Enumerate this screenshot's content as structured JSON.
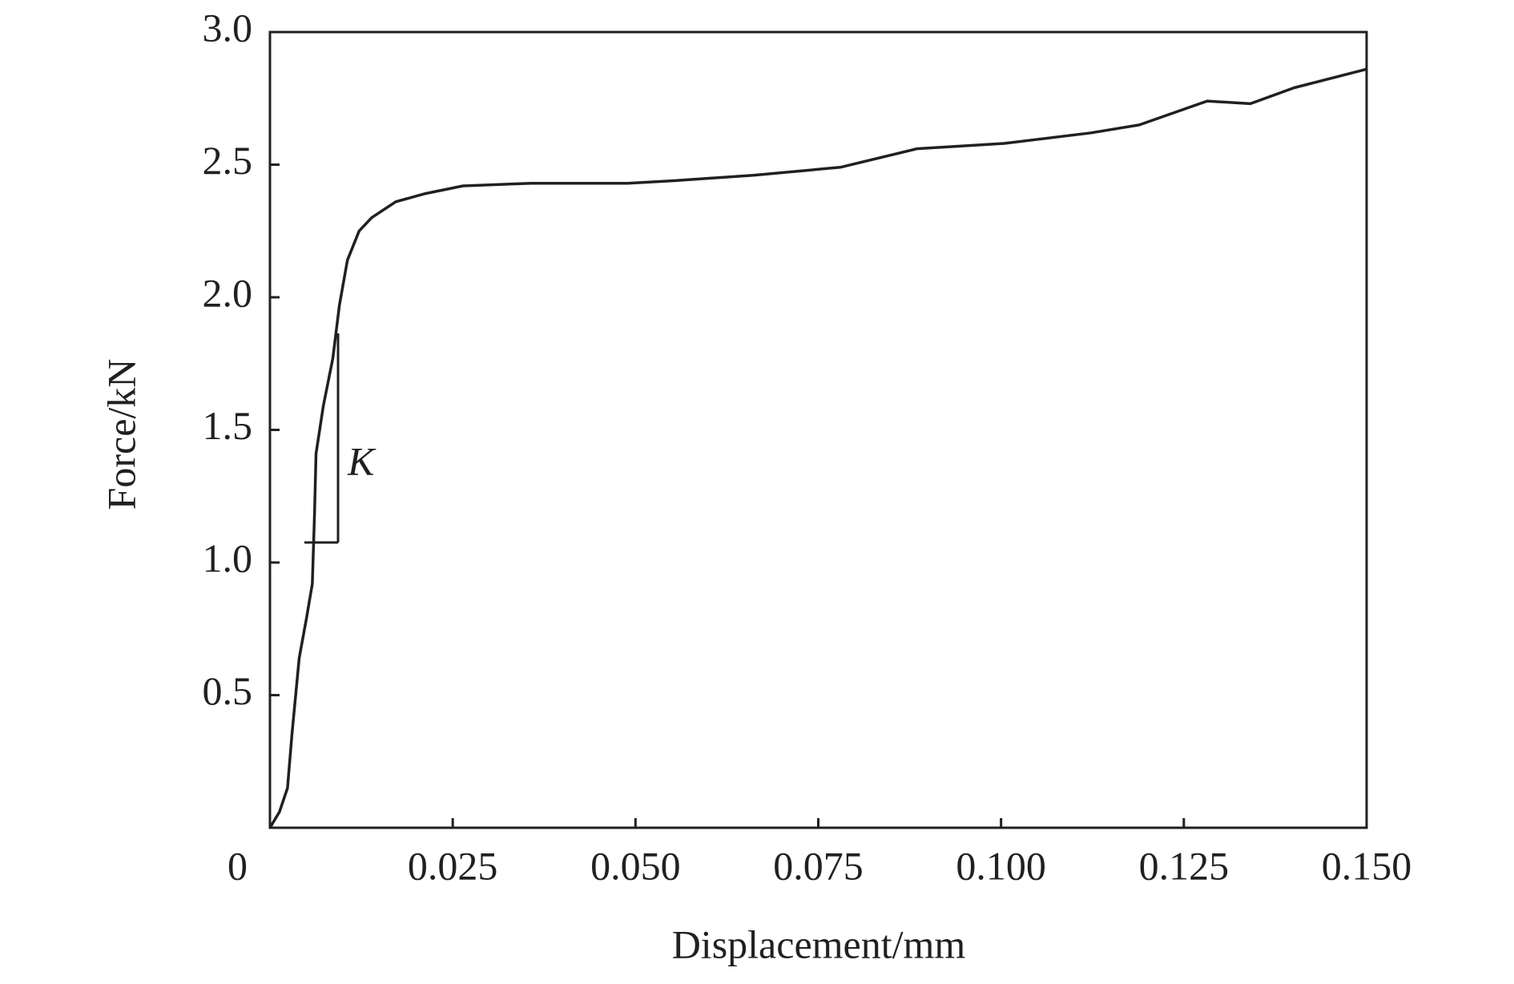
{
  "chart_data": {
    "type": "line",
    "x_label": "Displacement/mm",
    "y_label": "Force/kN",
    "annotation": "K",
    "xlim": [
      0,
      0.15
    ],
    "ylim": [
      0,
      3.0
    ],
    "xticks": [
      0,
      0.025,
      {
        "value": 0.05,
        "label": "0.050"
      },
      0.075,
      {
        "value": 0.1,
        "label": "0.100"
      },
      0.125,
      {
        "value": 0.15,
        "label": "0.150"
      }
    ],
    "yticks": [
      0.5,
      {
        "value": 1,
        "label": "1.0"
      },
      1.5,
      {
        "value": 2,
        "label": "2.0"
      },
      2.5,
      {
        "value": 3,
        "label": "3.0"
      }
    ],
    "grid": false,
    "series": [
      {
        "color": "#231f20",
        "x": [
          0,
          0.0013,
          0.0024,
          0.003,
          0.004,
          0.005,
          0.0058,
          0.0061,
          0.0063,
          0.0073,
          0.0086,
          0.0095,
          0.0106,
          0.0122,
          0.0139,
          0.0172,
          0.0211,
          0.0264,
          0.0357,
          0.0489,
          0.0555,
          0.0661,
          0.078,
          0.0885,
          0.1004,
          0.1123,
          0.1189,
          0.1282,
          0.1341,
          0.1401,
          0.15
        ],
        "values": [
          0,
          0.06,
          0.15,
          0.35,
          0.64,
          0.79,
          0.92,
          1.19,
          1.41,
          1.59,
          1.77,
          1.97,
          2.14,
          2.25,
          2.3,
          2.36,
          2.39,
          2.42,
          2.43,
          2.43,
          2.44,
          2.46,
          2.49,
          2.56,
          2.58,
          2.62,
          2.65,
          2.74,
          2.73,
          2.79,
          2.86
        ]
      }
    ]
  }
}
